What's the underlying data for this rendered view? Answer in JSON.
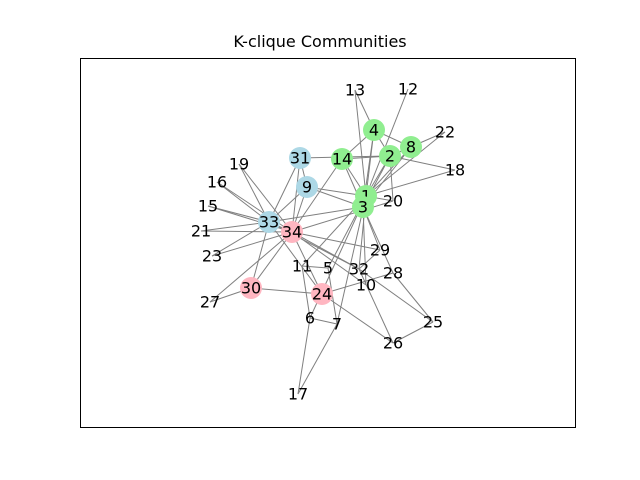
{
  "title": "K-clique Communities",
  "colors": {
    "edge": "#808080",
    "green": "#90ee90",
    "blue": "#add8e6",
    "pink": "#ffb6c1",
    "frame": "#000000"
  },
  "nodes": [
    {
      "id": "1",
      "color": "green"
    },
    {
      "id": "2",
      "color": "green"
    },
    {
      "id": "3",
      "color": "green"
    },
    {
      "id": "4",
      "color": "green"
    },
    {
      "id": "5",
      "color": "none"
    },
    {
      "id": "6",
      "color": "none"
    },
    {
      "id": "7",
      "color": "none"
    },
    {
      "id": "8",
      "color": "green"
    },
    {
      "id": "9",
      "color": "blue"
    },
    {
      "id": "10",
      "color": "none"
    },
    {
      "id": "11",
      "color": "none"
    },
    {
      "id": "12",
      "color": "none"
    },
    {
      "id": "13",
      "color": "none"
    },
    {
      "id": "14",
      "color": "green"
    },
    {
      "id": "15",
      "color": "none"
    },
    {
      "id": "16",
      "color": "none"
    },
    {
      "id": "17",
      "color": "none"
    },
    {
      "id": "18",
      "color": "none"
    },
    {
      "id": "19",
      "color": "none"
    },
    {
      "id": "20",
      "color": "none"
    },
    {
      "id": "21",
      "color": "none"
    },
    {
      "id": "22",
      "color": "none"
    },
    {
      "id": "23",
      "color": "none"
    },
    {
      "id": "24",
      "color": "pink"
    },
    {
      "id": "25",
      "color": "none"
    },
    {
      "id": "26",
      "color": "none"
    },
    {
      "id": "27",
      "color": "none"
    },
    {
      "id": "28",
      "color": "none"
    },
    {
      "id": "29",
      "color": "none"
    },
    {
      "id": "30",
      "color": "pink"
    },
    {
      "id": "31",
      "color": "blue"
    },
    {
      "id": "32",
      "color": "none"
    },
    {
      "id": "33",
      "color": "blue"
    },
    {
      "id": "34",
      "color": "pink"
    }
  ],
  "edges": [
    [
      "1",
      "2"
    ],
    [
      "1",
      "3"
    ],
    [
      "1",
      "4"
    ],
    [
      "1",
      "5"
    ],
    [
      "1",
      "6"
    ],
    [
      "1",
      "7"
    ],
    [
      "1",
      "8"
    ],
    [
      "1",
      "9"
    ],
    [
      "1",
      "11"
    ],
    [
      "1",
      "12"
    ],
    [
      "1",
      "13"
    ],
    [
      "1",
      "14"
    ],
    [
      "1",
      "18"
    ],
    [
      "1",
      "20"
    ],
    [
      "1",
      "22"
    ],
    [
      "1",
      "32"
    ],
    [
      "2",
      "3"
    ],
    [
      "2",
      "4"
    ],
    [
      "2",
      "8"
    ],
    [
      "2",
      "14"
    ],
    [
      "2",
      "18"
    ],
    [
      "2",
      "20"
    ],
    [
      "2",
      "22"
    ],
    [
      "2",
      "31"
    ],
    [
      "3",
      "4"
    ],
    [
      "3",
      "8"
    ],
    [
      "3",
      "9"
    ],
    [
      "3",
      "10"
    ],
    [
      "3",
      "14"
    ],
    [
      "3",
      "28"
    ],
    [
      "3",
      "29"
    ],
    [
      "3",
      "33"
    ],
    [
      "4",
      "8"
    ],
    [
      "4",
      "13"
    ],
    [
      "4",
      "14"
    ],
    [
      "5",
      "7"
    ],
    [
      "5",
      "11"
    ],
    [
      "6",
      "7"
    ],
    [
      "6",
      "11"
    ],
    [
      "6",
      "17"
    ],
    [
      "7",
      "17"
    ],
    [
      "9",
      "31"
    ],
    [
      "9",
      "33"
    ],
    [
      "9",
      "34"
    ],
    [
      "10",
      "34"
    ],
    [
      "14",
      "34"
    ],
    [
      "15",
      "33"
    ],
    [
      "15",
      "34"
    ],
    [
      "16",
      "33"
    ],
    [
      "16",
      "34"
    ],
    [
      "19",
      "33"
    ],
    [
      "19",
      "34"
    ],
    [
      "20",
      "34"
    ],
    [
      "21",
      "33"
    ],
    [
      "21",
      "34"
    ],
    [
      "23",
      "33"
    ],
    [
      "23",
      "34"
    ],
    [
      "24",
      "26"
    ],
    [
      "24",
      "28"
    ],
    [
      "24",
      "30"
    ],
    [
      "24",
      "33"
    ],
    [
      "24",
      "34"
    ],
    [
      "25",
      "26"
    ],
    [
      "25",
      "28"
    ],
    [
      "25",
      "32"
    ],
    [
      "26",
      "32"
    ],
    [
      "27",
      "30"
    ],
    [
      "27",
      "34"
    ],
    [
      "29",
      "32"
    ],
    [
      "29",
      "34"
    ],
    [
      "30",
      "33"
    ],
    [
      "30",
      "34"
    ],
    [
      "31",
      "33"
    ],
    [
      "31",
      "34"
    ],
    [
      "32",
      "33"
    ],
    [
      "32",
      "34"
    ],
    [
      "33",
      "34"
    ]
  ]
}
